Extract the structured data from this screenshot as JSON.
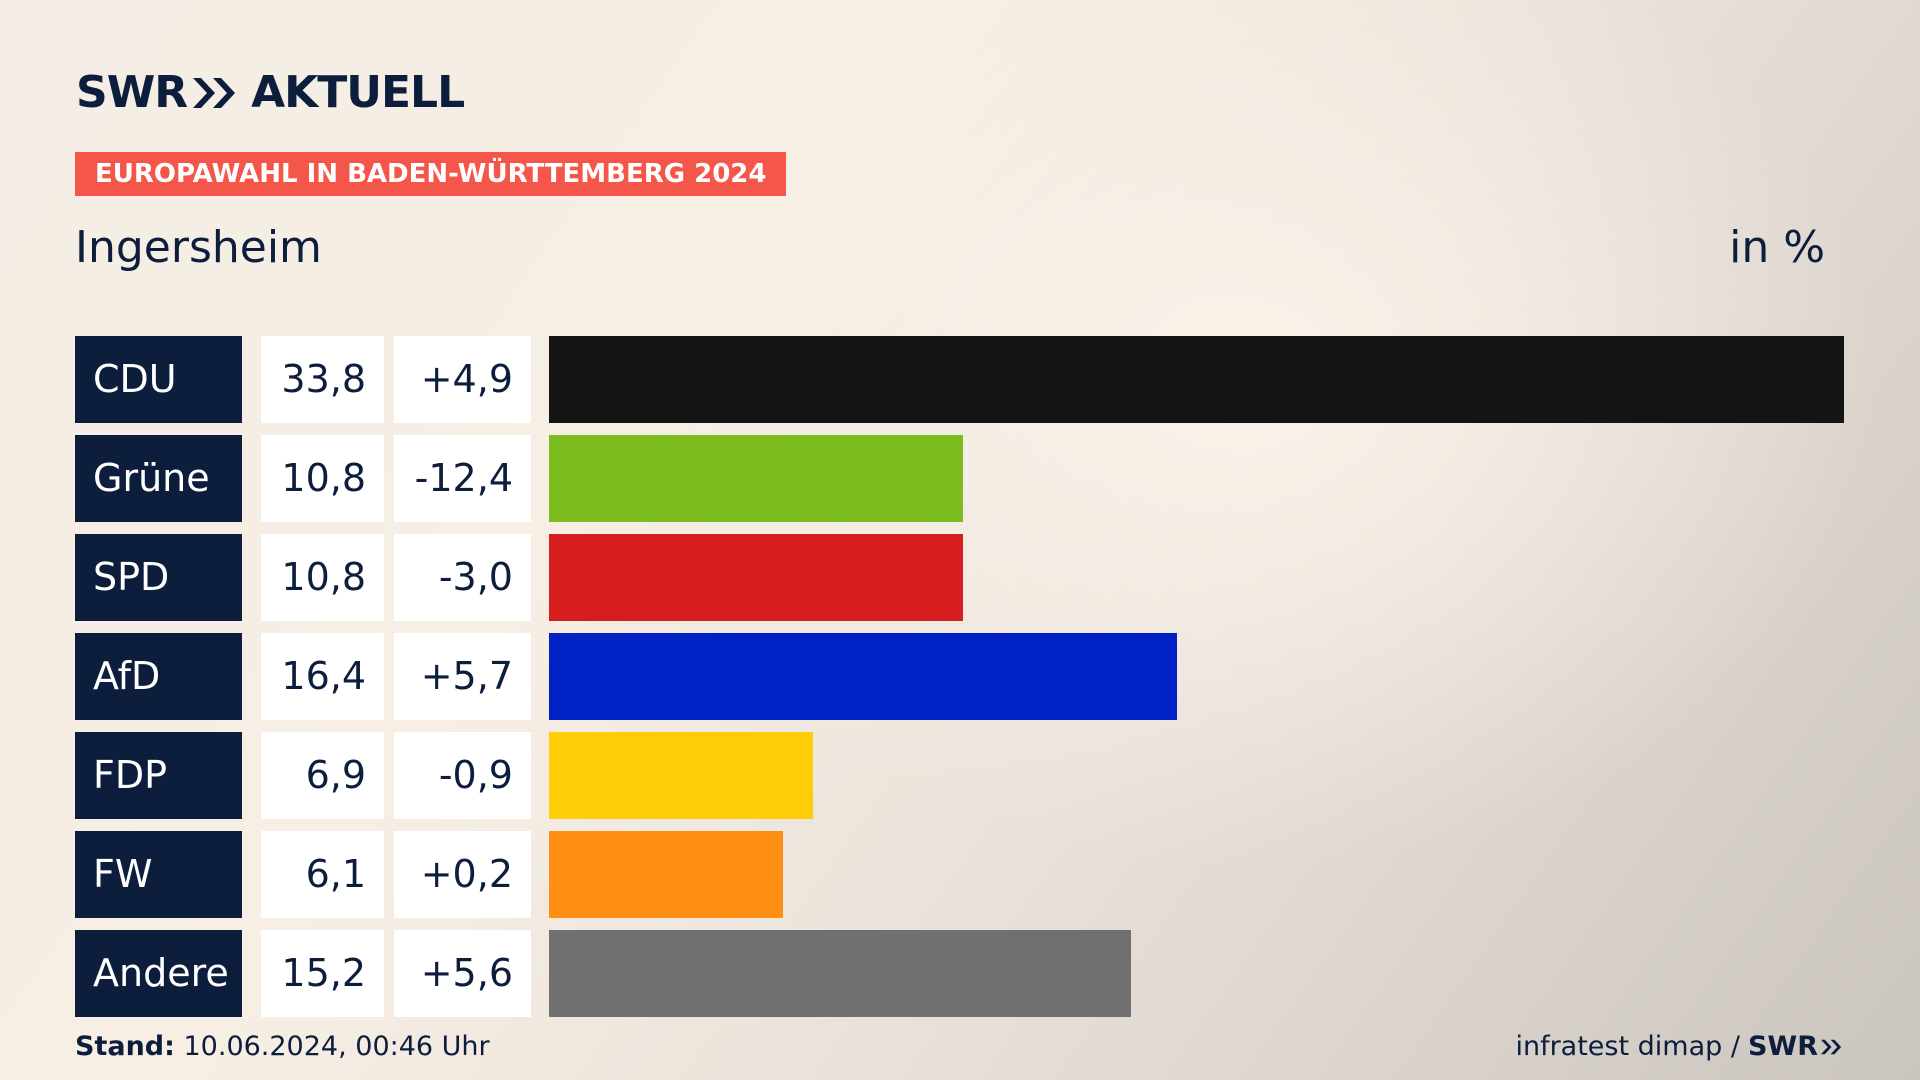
{
  "brand": {
    "logo_swr": "SWR",
    "logo_aktuell": "AKTUELL",
    "navy": "#0d1e3d",
    "accent": "#f4564a",
    "logo_icon": "double-chevron-icon"
  },
  "banner": "EUROPAWAHL IN BADEN-WÜRTTEMBERG 2024",
  "region": "Ingersheim",
  "unit_label": "in %",
  "footer": {
    "stand_label": "Stand:",
    "stand_value": " 10.06.2024, 00:46 Uhr",
    "source_text": "infratest dimap /",
    "source_brand": "SWR"
  },
  "chart_data": {
    "type": "bar",
    "orientation": "horizontal",
    "categories": [
      "CDU",
      "Grüne",
      "SPD",
      "AfD",
      "FDP",
      "FW",
      "Andere"
    ],
    "values": [
      33.8,
      10.8,
      10.8,
      16.4,
      6.9,
      6.1,
      15.2
    ],
    "value_labels": [
      "33,8",
      "10,8",
      "10,8",
      "16,4",
      "6,9",
      "6,1",
      "15,2"
    ],
    "changes": [
      4.9,
      -12.4,
      -3.0,
      5.7,
      -0.9,
      0.2,
      5.6
    ],
    "change_labels": [
      "+4,9",
      "-12,4",
      "-3,0",
      "+5,7",
      "-0,9",
      "+0,2",
      "+5,6"
    ],
    "colors": [
      "#141414",
      "#7bbd1e",
      "#d61e1e",
      "#0021c4",
      "#ffcc08",
      "#ff8e15",
      "#707070"
    ],
    "xlim": [
      0,
      33.8
    ],
    "grid": false,
    "legend": "none"
  }
}
